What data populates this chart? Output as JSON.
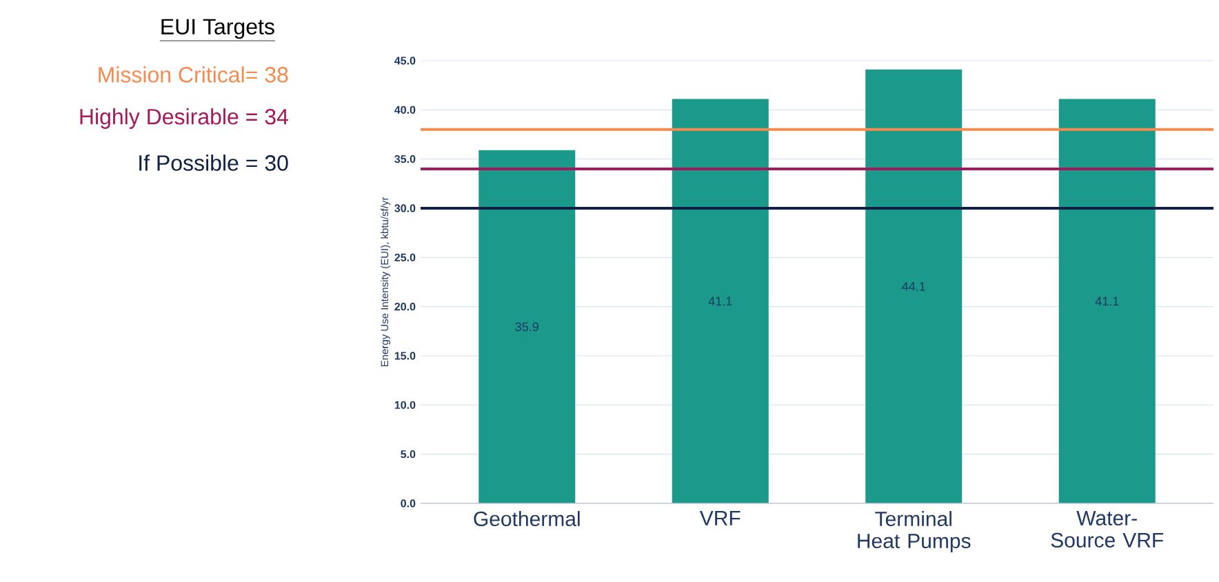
{
  "chart_data": {
    "type": "bar",
    "ylabel": "Energy Use Intensity (EUI), kbtu/sf/yr",
    "categories": [
      "Geothermal",
      "VRF",
      "Terminal Heat Pumps",
      "Water-Source VRF"
    ],
    "values": [
      35.9,
      41.1,
      44.1,
      41.1
    ],
    "color": "#1b998b",
    "data_labels": true,
    "ylim": [
      0,
      45
    ],
    "yticks": [
      {
        "value": 0,
        "label": "0.0"
      },
      {
        "value": 5,
        "label": "5.0"
      },
      {
        "value": 10,
        "label": "10.0"
      },
      {
        "value": 15,
        "label": "15.0"
      },
      {
        "value": 20,
        "label": "20.0"
      },
      {
        "value": 25,
        "label": "25.0"
      },
      {
        "value": 30,
        "label": "30.0"
      },
      {
        "value": 35,
        "label": "35.0"
      },
      {
        "value": 40,
        "label": "40.0"
      },
      {
        "value": 45,
        "label": "45.0"
      }
    ],
    "grid": "y",
    "legend_title": "EUI Targets",
    "ref_lines": [
      {
        "axis": "y",
        "value": 38,
        "label": "Mission Critical= 38",
        "color": "#f58a4f"
      },
      {
        "axis": "y",
        "value": 34,
        "label": "Highly Desirable = 34",
        "color": "#a3195b"
      },
      {
        "axis": "y",
        "value": 30,
        "label": "If Possible = 30",
        "color": "#0f2044"
      }
    ]
  }
}
